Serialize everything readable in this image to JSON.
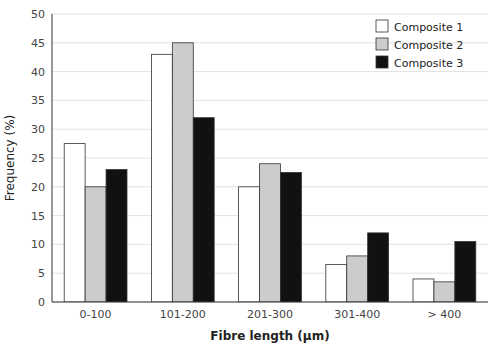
{
  "chart_data": {
    "type": "bar",
    "categories": [
      "0-100",
      "101-200",
      "201-300",
      "301-400",
      "> 400"
    ],
    "series": [
      {
        "name": "Composite 1",
        "color": "#ffffff",
        "values": [
          27.5,
          43.0,
          20.0,
          6.5,
          4.0
        ]
      },
      {
        "name": "Composite 2",
        "color": "#cccccc",
        "values": [
          20.0,
          45.0,
          24.0,
          8.0,
          3.5
        ]
      },
      {
        "name": "Composite 3",
        "color": "#111111",
        "values": [
          23.0,
          32.0,
          22.5,
          12.0,
          10.5
        ]
      }
    ],
    "xlabel": "Fibre length (μm)",
    "ylabel": "Frequency (%)",
    "ylim": [
      0,
      50
    ],
    "yticks": [
      0,
      5,
      10,
      15,
      20,
      25,
      30,
      35,
      40,
      45,
      50
    ],
    "grid": true,
    "legend": "top-right"
  }
}
